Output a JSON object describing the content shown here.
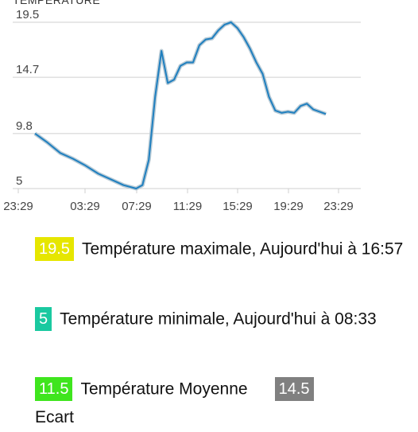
{
  "header": {
    "title": "TEMPERATURE"
  },
  "colors": {
    "line": "#1f7fbf",
    "line_shadow": "#b9cbd6",
    "grid": "#cfcfcf",
    "badge_max": "#e6e600",
    "badge_min": "#1ac9a0",
    "badge_avg": "#3fe51e",
    "badge_ecart": "#808080"
  },
  "chart_data": {
    "type": "line",
    "x_ticks": [
      "23:29",
      "03:29",
      "07:29",
      "11:29",
      "15:29",
      "19:29",
      "23:29"
    ],
    "y_ticks": [
      5,
      9.8,
      14.7,
      19.5
    ],
    "ylim": [
      5,
      19.5
    ],
    "xlim": [
      0,
      24
    ],
    "grid": true,
    "series": [
      {
        "x": [
          0,
          1,
          2,
          3,
          4,
          5,
          6,
          7,
          8,
          8.5,
          9,
          9.5,
          10,
          10.5,
          11,
          11.5,
          12,
          12.5,
          13,
          13.5,
          14,
          14.5,
          15,
          15.5,
          16,
          16.5,
          17,
          17.5,
          18,
          18.5,
          19,
          19.5,
          20,
          20.5,
          21,
          21.5,
          22,
          22.5,
          23
        ],
        "y": [
          9.8,
          9.0,
          8.1,
          7.6,
          7.0,
          6.3,
          5.8,
          5.3,
          5.0,
          5.3,
          7.5,
          13.0,
          17.0,
          14.2,
          14.5,
          15.7,
          16.0,
          16.0,
          17.5,
          18.0,
          18.1,
          18.8,
          19.3,
          19.5,
          19.0,
          18.2,
          17.2,
          16.0,
          15.0,
          13.0,
          11.8,
          11.6,
          11.7,
          11.6,
          12.2,
          12.4,
          11.9,
          11.7,
          11.5
        ]
      }
    ]
  },
  "stats": {
    "max": {
      "value": "19.5",
      "text": "Température maximale, Aujourd'hui à 16:57"
    },
    "min": {
      "value": "5",
      "text": "Température minimale, Aujourd'hui à 08:33"
    },
    "avg": {
      "value": "11.5",
      "text": "Température Moyenne"
    },
    "ecart": {
      "value": "14.5",
      "text": "Ecart"
    }
  }
}
